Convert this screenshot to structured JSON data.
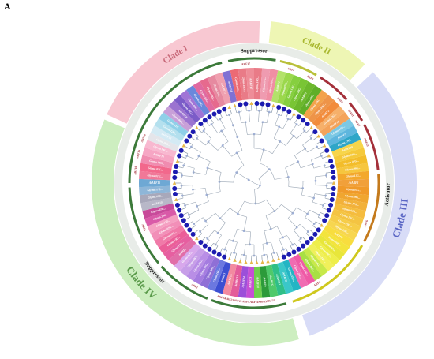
{
  "panel_label": "A",
  "clades": [
    {
      "id": "I",
      "name": "Clade I",
      "start": -65,
      "end": 2,
      "color": "#f8c8d2",
      "text_color": "#c86a7a",
      "font": 11
    },
    {
      "id": "II",
      "name": "Clade II",
      "start": 6,
      "end": 43,
      "color": "#eef6b4",
      "text_color": "#a9b830",
      "font": 11
    },
    {
      "id": "III",
      "name": "Clade III",
      "start": 47,
      "end": 160,
      "color": "#d8dcf7",
      "text_color": "#5a66c4",
      "font": 13
    },
    {
      "id": "IV",
      "name": "Clade IV",
      "start": 164,
      "end": 293,
      "color": "#cdeec0",
      "text_color": "#5a9a4a",
      "font": 13
    }
  ],
  "function_labels": [
    {
      "text": "Suppressor",
      "angle": 0,
      "orient": "top"
    },
    {
      "text": "Activator",
      "angle": 95,
      "orient": "side"
    },
    {
      "text": "Suppressor",
      "angle": 228,
      "orient": "bottom"
    }
  ],
  "arf_arcs": [
    {
      "start": -12,
      "end": 10,
      "color": "#3c7a3a"
    },
    {
      "start": 12,
      "end": 30,
      "color": "#b9c03a"
    },
    {
      "start": 32,
      "end": 48,
      "color": "#a4303a"
    },
    {
      "start": 50,
      "end": 60,
      "color": "#a4303a"
    },
    {
      "start": 62,
      "end": 84,
      "color": "#a4303a"
    },
    {
      "start": 86,
      "end": 118,
      "color": "#c47a1c"
    },
    {
      "start": 120,
      "end": 162,
      "color": "#cfc81e"
    },
    {
      "start": 165,
      "end": 200,
      "color": "#3c7a3a"
    },
    {
      "start": 202,
      "end": 228,
      "color": "#3c7a3a"
    },
    {
      "start": 230,
      "end": 268,
      "color": "#3c7a3a"
    },
    {
      "start": 270,
      "end": 345,
      "color": "#3c7a3a"
    }
  ],
  "arf_labels": [
    {
      "text": "ARF17",
      "angle": -4
    },
    {
      "text": "ARF4",
      "angle": 18
    },
    {
      "text": "ARF3",
      "angle": 28
    },
    {
      "text": "ARF2",
      "angle": 46
    },
    {
      "text": "ARF11",
      "angle": 54
    },
    {
      "text": "ARF7",
      "angle": 60
    },
    {
      "text": "ARF19",
      "angle": 70
    },
    {
      "text": "ARF6",
      "angle": 110
    },
    {
      "text": "ARF8",
      "angle": 148
    },
    {
      "text": "ARF22",
      "angle": 172
    },
    {
      "text": "ARF13",
      "angle": 176
    },
    {
      "text": "ARF21",
      "angle": 180
    },
    {
      "text": "ARF9",
      "angle": 184
    },
    {
      "text": "ARF20",
      "angle": 188
    },
    {
      "text": "ARF23",
      "angle": 192
    },
    {
      "text": "ARF14",
      "angle": 196
    },
    {
      "text": "ARF1",
      "angle": 210
    },
    {
      "text": "ARF5",
      "angle": 248
    },
    {
      "text": "ARF10",
      "angle": 276
    },
    {
      "text": "ARF16",
      "angle": 284
    },
    {
      "text": "ARF18",
      "angle": 292
    }
  ],
  "genes": [
    {
      "angle": -14,
      "label": "AtARF18",
      "color": "#7f71d4"
    },
    {
      "angle": -10,
      "label": "Glyma.06G...",
      "color": "#ec6a74"
    },
    {
      "angle": -6,
      "label": "Glyma.18G...",
      "color": "#e97b87"
    },
    {
      "angle": -2,
      "label": "AtARF17",
      "color": "#ee8d98"
    },
    {
      "angle": 2,
      "label": "Glyma.14G...",
      "color": "#e97b87"
    },
    {
      "angle": 6,
      "label": "Glyma.17G...",
      "color": "#ef9bb0"
    },
    {
      "angle": 10,
      "label": "Glyma.02G...",
      "color": "#f08ea3"
    },
    {
      "angle": 14,
      "label": "AtARF4",
      "color": "#b3e26a"
    },
    {
      "angle": 18,
      "label": "Glyma.07G...",
      "color": "#9bd84c"
    },
    {
      "angle": 22,
      "label": "Glyma.13G...",
      "color": "#86cf3f"
    },
    {
      "angle": 26,
      "label": "Glyma.19G...",
      "color": "#79c534"
    },
    {
      "angle": 30,
      "label": "AtARF3",
      "color": "#6cb82c"
    },
    {
      "angle": 34,
      "label": "Glyma.10G...",
      "color": "#5fae28"
    },
    {
      "angle": 38,
      "label": "Glyma.20G...",
      "color": "#f3a24a"
    },
    {
      "angle": 42,
      "label": "Glyma.09G...",
      "color": "#ee9448"
    },
    {
      "angle": 46,
      "label": "AtARF2",
      "color": "#f28c3c"
    },
    {
      "angle": 50,
      "label": "Glyma.12G...",
      "color": "#f6b06a"
    },
    {
      "angle": 54,
      "label": "AtARF11",
      "color": "#f4a35a"
    },
    {
      "angle": 58,
      "label": "Glyma.15G...",
      "color": "#7bc8e4"
    },
    {
      "angle": 62,
      "label": "AtARF7",
      "color": "#5eb6de"
    },
    {
      "angle": 66,
      "label": "Glyma.13G...",
      "color": "#2fa6c8"
    },
    {
      "angle": 70,
      "label": "AtARF19",
      "color": "#f7d54a"
    },
    {
      "angle": 74,
      "label": "Glyma.01G...",
      "color": "#f5c93a"
    },
    {
      "angle": 78,
      "label": "Glyma.07G...",
      "color": "#f3bd2a"
    },
    {
      "angle": 82,
      "label": "Glyma.09G...",
      "color": "#f6c63e"
    },
    {
      "angle": 86,
      "label": "Glyma.11G...",
      "color": "#f3a82c"
    },
    {
      "angle": 90,
      "label": "AtARF6",
      "color": "#f1a03a"
    },
    {
      "angle": 94,
      "label": "Glyma.05G...",
      "color": "#f09a2a"
    },
    {
      "angle": 98,
      "label": "Glyma.08G...",
      "color": "#f0a630"
    },
    {
      "angle": 102,
      "label": "Glyma.17G...",
      "color": "#f2b13a"
    },
    {
      "angle": 106,
      "label": "Glyma.02G...",
      "color": "#f5bc3e"
    },
    {
      "angle": 110,
      "label": "Glyma.10G...",
      "color": "#f4c442"
    },
    {
      "angle": 114,
      "label": "Glyma.19G...",
      "color": "#f6cd48"
    },
    {
      "angle": 118,
      "label": "Glyma.03G...",
      "color": "#f7d650"
    },
    {
      "angle": 122,
      "label": "AtARF8",
      "color": "#f8dd3e"
    },
    {
      "angle": 126,
      "label": "Glyma.16G...",
      "color": "#f3e43c"
    },
    {
      "angle": 130,
      "label": "Glyma.04G...",
      "color": "#e8e63a"
    },
    {
      "angle": 134,
      "label": "Glyma.06G...",
      "color": "#eeee4a"
    },
    {
      "angle": 138,
      "label": "Glyma.14G...",
      "color": "#f0f05a"
    },
    {
      "angle": 142,
      "label": "Glyma.18G...",
      "color": "#c7e94a"
    },
    {
      "angle": 146,
      "label": "Glyma.08G...",
      "color": "#a8df44"
    },
    {
      "angle": 150,
      "label": "Glyma.15G...",
      "color": "#ef5aa6"
    },
    {
      "angle": 154,
      "label": "Glyma.20G...",
      "color": "#f06cb2"
    },
    {
      "angle": 158,
      "label": "Glyma.01G...",
      "color": "#24b5c4"
    },
    {
      "angle": 162,
      "label": "AtARF21",
      "color": "#3ac7c9"
    },
    {
      "angle": 166,
      "label": "AtARF13",
      "color": "#2fbf88"
    },
    {
      "angle": 170,
      "label": "AtARF22",
      "color": "#4fc96a"
    },
    {
      "angle": 174,
      "label": "AtARF9",
      "color": "#2c9b3a"
    },
    {
      "angle": 178,
      "label": "AtARF20",
      "color": "#6ecf4c"
    },
    {
      "angle": 182,
      "label": "AtARF23",
      "color": "#c74fd4"
    },
    {
      "angle": 186,
      "label": "AtARF14",
      "color": "#9c4fd9"
    },
    {
      "angle": 190,
      "label": "AtARF12",
      "color": "#e35c9a"
    },
    {
      "angle": 194,
      "label": "AtARF15",
      "color": "#f28aa0"
    },
    {
      "angle": 198,
      "label": "AtARF1",
      "color": "#3c4fd2"
    },
    {
      "angle": 202,
      "label": "Glyma.16G...",
      "color": "#6b78e0"
    },
    {
      "angle": 206,
      "label": "Glyma.04G...",
      "color": "#8f6fd6"
    },
    {
      "angle": 210,
      "label": "Glyma.10G...",
      "color": "#a57ce0"
    },
    {
      "angle": 214,
      "label": "Glyma.20G...",
      "color": "#b98ee6"
    },
    {
      "angle": 218,
      "label": "Glyma.08G...",
      "color": "#c79ee8"
    },
    {
      "angle": 222,
      "label": "Glyma.11G...",
      "color": "#d8a8ec"
    },
    {
      "angle": 226,
      "label": "AtARF5",
      "color": "#e16ea8"
    },
    {
      "angle": 230,
      "label": "Glyma.13G...",
      "color": "#e65fa0"
    },
    {
      "angle": 234,
      "label": "Glyma.15G...",
      "color": "#eb5e98"
    },
    {
      "angle": 238,
      "label": "Glyma.09G...",
      "color": "#f07aa8"
    },
    {
      "angle": 242,
      "label": "Glyma.02G...",
      "color": "#f28fb8"
    },
    {
      "angle": 246,
      "label": "Glyma.12G...",
      "color": "#f5a0c2"
    },
    {
      "angle": 250,
      "label": "Glyma.19G...",
      "color": "#d95aa8"
    },
    {
      "angle": 254,
      "label": "Glyma.07G...",
      "color": "#c84a9a"
    },
    {
      "angle": 258,
      "label": "AtARF10",
      "color": "#b8b8c8"
    },
    {
      "angle": 262,
      "label": "Glyma.05G...",
      "color": "#a8a8ba"
    },
    {
      "angle": 266,
      "label": "Glyma.17G...",
      "color": "#8eb6d8"
    },
    {
      "angle": 270,
      "label": "AtARF16",
      "color": "#6ea8d4"
    },
    {
      "angle": 274,
      "label": "Glyma.01G...",
      "color": "#f07898"
    },
    {
      "angle": 278,
      "label": "Glyma.03G...",
      "color": "#f2688c"
    },
    {
      "angle": 282,
      "label": "Glyma.18G...",
      "color": "#f08cb0"
    },
    {
      "angle": 286,
      "label": "AtARF10",
      "color": "#f6a6c4"
    },
    {
      "angle": 290,
      "label": "Glyma.14G...",
      "color": "#f8b8d0"
    },
    {
      "angle": 294,
      "label": "Glyma.06G...",
      "color": "#e5e5ea"
    },
    {
      "angle": 298,
      "label": "AtARF16",
      "color": "#d4eaf4"
    },
    {
      "angle": 302,
      "label": "Glyma.12G...",
      "color": "#b4e0ee"
    },
    {
      "angle": 306,
      "label": "Glyma.11G...",
      "color": "#8fd0e8"
    },
    {
      "angle": 310,
      "label": "Glyma.04G...",
      "color": "#c8a0d8"
    },
    {
      "angle": 314,
      "label": "AtARF18",
      "color": "#9b73d0"
    },
    {
      "angle": 318,
      "label": "Glyma.16G...",
      "color": "#7b5cc8"
    },
    {
      "angle": 322,
      "label": "Glyma.08G...",
      "color": "#a074d6"
    },
    {
      "angle": 326,
      "label": "Glyma.20G...",
      "color": "#6a88dc"
    },
    {
      "angle": 330,
      "label": "Glyma.05G...",
      "color": "#e06aa0"
    },
    {
      "angle": 334,
      "label": "Glyma.19G...",
      "color": "#e66a8e"
    },
    {
      "angle": 338,
      "label": "Glyma.07G...",
      "color": "#e68aa0"
    },
    {
      "angle": 342,
      "label": "AtARF17",
      "color": "#f0a0b0"
    }
  ],
  "dot_colors": {
    "soybean": "#1b1bb0",
    "arabidopsis": "#e6b84a"
  },
  "tree_color": "#9aa6b4"
}
